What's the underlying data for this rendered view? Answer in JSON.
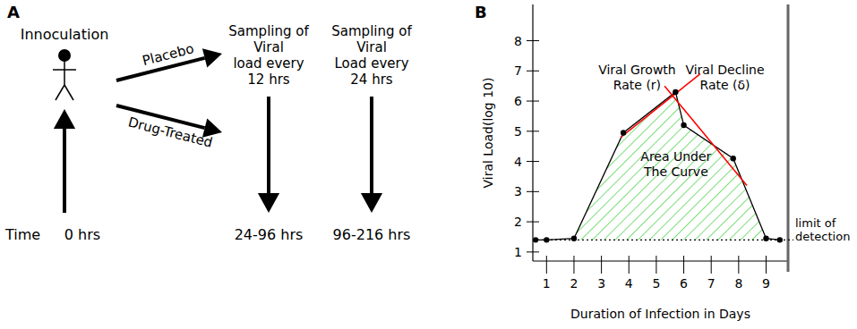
{
  "panel_labels": [
    "A",
    "B"
  ],
  "diagram": {
    "subject": "Innoculation",
    "arms": [
      "Placebo",
      "Drug-Treated"
    ],
    "time_label": "Time",
    "start_time": "0 hrs",
    "sampling": [
      {
        "lines": [
          "Sampling of",
          "Viral",
          "load every",
          "12 hrs"
        ],
        "time": "24-96 hrs"
      },
      {
        "lines": [
          "Sampling of",
          "Viral",
          "Load every",
          "24 hrs"
        ],
        "time": "96-216 hrs"
      }
    ]
  },
  "chart_data": {
    "type": "line",
    "x_label": "Duration of Infection in Days",
    "y_label": "Viral Load(log 10)",
    "x": [
      0.6,
      1.0,
      2.0,
      3.8,
      5.7,
      6.0,
      7.8,
      9.0,
      9.5
    ],
    "values": [
      1.4,
      1.4,
      1.45,
      4.95,
      6.3,
      5.2,
      4.1,
      1.45,
      1.4
    ],
    "color": "#000000",
    "marker": "circle",
    "line_style": "solid",
    "xlim": [
      0.5,
      9.8
    ],
    "ylim": [
      0.7,
      9.2
    ],
    "xticks": [
      1,
      2,
      3,
      4,
      5,
      6,
      7,
      8,
      9
    ],
    "yticks": [
      1,
      2,
      3,
      4,
      5,
      6,
      7,
      8
    ],
    "grid": false,
    "limit_of_detection": {
      "value": 1.4,
      "label": "limit of detection",
      "line_style": "dotted"
    },
    "growth_line": {
      "label": "Viral Growth Rate (r)",
      "x": [
        3.7,
        6.6
      ],
      "y": [
        4.8,
        6.9
      ],
      "color": "#ff0000"
    },
    "decline_line": {
      "label": "Viral Decline Rate (δ)",
      "x": [
        5.3,
        8.3
      ],
      "y": [
        6.5,
        3.2
      ],
      "color": "#ff0000"
    },
    "area": {
      "label": "Area Under The Curve",
      "color": "#33cc33"
    }
  }
}
